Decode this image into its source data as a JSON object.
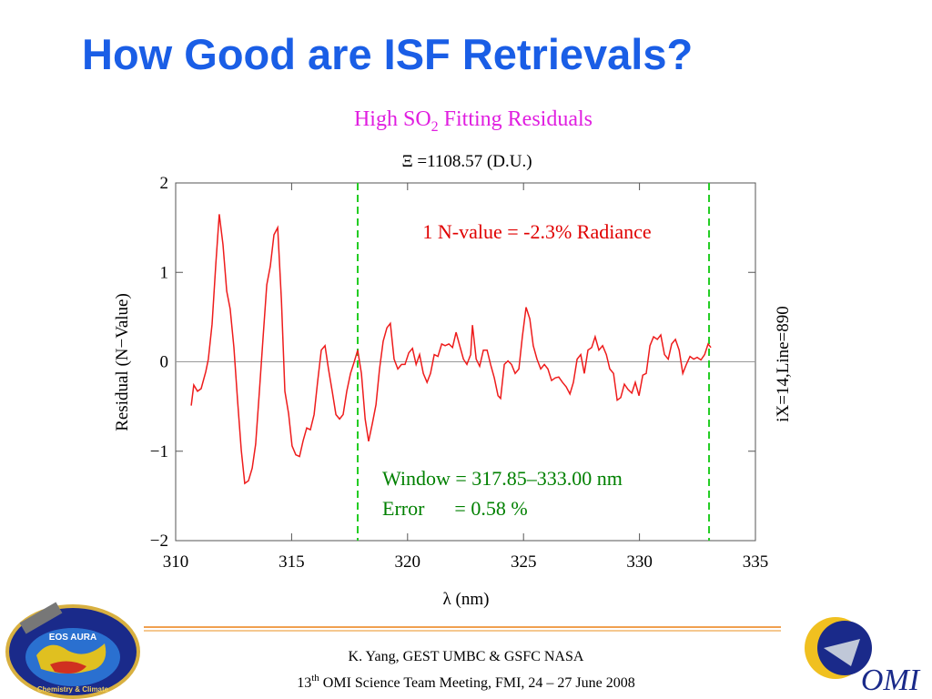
{
  "slide_title": "How Good are ISF Retrievals?",
  "chart_data": {
    "type": "line",
    "title": [
      "High SO",
      "2",
      " Fitting Residuals"
    ],
    "subtitle": "Ξ =1108.57 (D.U.)",
    "x_label": "λ (nm)",
    "y_label": "Residual (N−Value)",
    "side_label": "iX=14,Line=890",
    "annotations": [
      "1 N-value = -2.3% Radiance",
      "Window = 317.85–333.00 nm",
      "Error      = 0.58 %"
    ],
    "annotation_colors": [
      "#e00000",
      "#008000",
      "#008000"
    ],
    "xlim": [
      310,
      335
    ],
    "xticks": [
      310,
      315,
      320,
      325,
      330,
      335
    ],
    "ylim": [
      -2,
      2
    ],
    "yticks": [
      {
        "value": -2,
        "label": "−2"
      },
      {
        "value": -1,
        "label": "−1"
      },
      0,
      1,
      2
    ],
    "vlines": [
      317.85,
      333.0
    ],
    "vline_color": "#22cc22",
    "hlines": [
      0
    ],
    "color": "#ee1c1c",
    "x": [
      310.67,
      310.78,
      310.94,
      311.1,
      311.3,
      311.41,
      311.57,
      311.73,
      311.88,
      312.04,
      312.2,
      312.35,
      312.51,
      312.67,
      312.83,
      312.98,
      313.14,
      313.3,
      313.45,
      313.61,
      313.77,
      313.93,
      314.08,
      314.24,
      314.4,
      314.56,
      314.71,
      314.87,
      315.02,
      315.18,
      315.34,
      315.5,
      315.65,
      315.81,
      315.97,
      316.12,
      316.28,
      316.44,
      316.59,
      316.75,
      316.91,
      317.07,
      317.22,
      317.38,
      317.54,
      317.69,
      317.85,
      318.01,
      318.17,
      318.32,
      318.48,
      318.64,
      318.79,
      318.95,
      319.11,
      319.26,
      319.42,
      319.58,
      319.74,
      319.89,
      320.05,
      320.21,
      320.37,
      320.52,
      320.68,
      320.84,
      320.99,
      321.15,
      321.31,
      321.47,
      321.62,
      321.78,
      321.94,
      322.09,
      322.25,
      322.41,
      322.56,
      322.72,
      322.8,
      322.96,
      323.11,
      323.27,
      323.43,
      323.58,
      323.74,
      323.9,
      324.01,
      324.17,
      324.33,
      324.48,
      324.64,
      324.8,
      324.95,
      325.11,
      325.27,
      325.42,
      325.58,
      325.74,
      325.9,
      326.05,
      326.21,
      326.37,
      326.52,
      326.68,
      326.84,
      327.0,
      327.15,
      327.31,
      327.47,
      327.62,
      327.78,
      327.94,
      328.09,
      328.25,
      328.41,
      328.57,
      328.72,
      328.88,
      329.04,
      329.19,
      329.35,
      329.51,
      329.67,
      329.82,
      329.98,
      330.14,
      330.29,
      330.45,
      330.61,
      330.77,
      330.92,
      331.08,
      331.24,
      331.39,
      331.55,
      331.71,
      331.87,
      332.02,
      332.18,
      332.34,
      332.49,
      332.65,
      332.81,
      332.96,
      333.08
    ],
    "values": [
      -0.49,
      -0.26,
      -0.33,
      -0.3,
      -0.11,
      0.03,
      0.42,
      1.09,
      1.65,
      1.31,
      0.79,
      0.59,
      0.16,
      -0.43,
      -0.99,
      -1.36,
      -1.33,
      -1.19,
      -0.92,
      -0.33,
      0.28,
      0.86,
      1.07,
      1.42,
      1.5,
      0.69,
      -0.33,
      -0.58,
      -0.94,
      -1.04,
      -1.06,
      -0.88,
      -0.74,
      -0.76,
      -0.59,
      -0.23,
      0.13,
      0.18,
      -0.08,
      -0.33,
      -0.59,
      -0.64,
      -0.59,
      -0.33,
      -0.13,
      -0.01,
      0.13,
      -0.13,
      -0.64,
      -0.89,
      -0.69,
      -0.48,
      -0.08,
      0.23,
      0.38,
      0.43,
      0.03,
      -0.08,
      -0.03,
      -0.03,
      0.1,
      0.15,
      -0.03,
      0.08,
      -0.13,
      -0.23,
      -0.13,
      0.08,
      0.06,
      0.2,
      0.18,
      0.2,
      0.16,
      0.33,
      0.18,
      0.03,
      -0.03,
      0.08,
      0.41,
      0.03,
      -0.05,
      0.13,
      0.13,
      -0.03,
      -0.18,
      -0.38,
      -0.41,
      -0.03,
      0.01,
      -0.03,
      -0.13,
      -0.08,
      0.28,
      0.61,
      0.48,
      0.18,
      0.03,
      -0.08,
      -0.03,
      -0.08,
      -0.21,
      -0.18,
      -0.17,
      -0.23,
      -0.28,
      -0.36,
      -0.23,
      0.03,
      0.08,
      -0.13,
      0.13,
      0.16,
      0.28,
      0.13,
      0.18,
      0.08,
      -0.08,
      -0.13,
      -0.43,
      -0.4,
      -0.25,
      -0.31,
      -0.35,
      -0.23,
      -0.38,
      -0.15,
      -0.13,
      0.18,
      0.28,
      0.25,
      0.3,
      0.08,
      0.03,
      0.2,
      0.25,
      0.13,
      -0.13,
      -0.03,
      0.06,
      0.03,
      0.05,
      0.02,
      0.08,
      0.2,
      0.16
    ]
  },
  "footer": {
    "line1": "K. Yang, GEST UMBC  & GSFC NASA",
    "line2": [
      "13",
      "th",
      " OMI Science Team Meeting, FMI, 24 – 27 June 2008"
    ]
  },
  "logos": {
    "left": [
      "EOS AURA",
      "Chemistry & Climate"
    ],
    "right": "OMI"
  }
}
